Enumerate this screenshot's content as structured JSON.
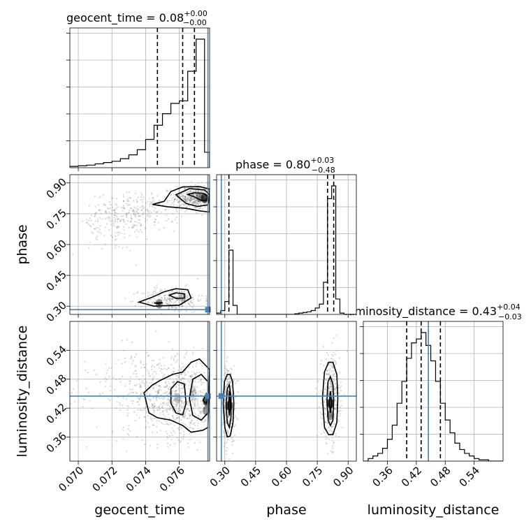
{
  "chart_data": {
    "type": "corner",
    "parameters": [
      "geocent_time",
      "phase",
      "luminosity_distance"
    ],
    "titles": [
      {
        "param": "geocent_time",
        "label": "geocent_time = 0.08",
        "plus": "+0.00",
        "minus": "−0.00"
      },
      {
        "param": "phase",
        "label": "phase = 0.80",
        "plus": "+0.03",
        "minus": "−0.48"
      },
      {
        "param": "luminosity_distance",
        "label": "luminosity_distance = 0.43",
        "plus": "+0.04",
        "minus": "−0.03"
      }
    ],
    "axes": {
      "geocent_time": {
        "range": [
          0.0695,
          0.0778
        ],
        "ticks": [
          0.07,
          0.072,
          0.074,
          0.076
        ],
        "tick_labels": [
          "0.070",
          "0.072",
          "0.074",
          "0.076"
        ]
      },
      "phase": {
        "range": [
          0.26,
          0.94
        ],
        "ticks": [
          0.3,
          0.45,
          0.6,
          0.75,
          0.9
        ],
        "tick_labels": [
          "0.30",
          "0.45",
          "0.60",
          "0.75",
          "0.90"
        ]
      },
      "luminosity_distance": {
        "range": [
          0.31,
          0.6
        ],
        "ticks": [
          0.36,
          0.42,
          0.48,
          0.54
        ],
        "tick_labels": [
          "0.36",
          "0.42",
          "0.48",
          "0.54"
        ]
      }
    },
    "truths": {
      "geocent_time": 0.0777,
      "phase": 0.283,
      "luminosity_distance": 0.445
    },
    "quantiles": {
      "geocent_time": [
        0.0747,
        0.0762,
        0.0769
      ],
      "phase": [
        0.32,
        0.8,
        0.83
      ],
      "luminosity_distance": [
        0.4,
        0.43,
        0.47
      ]
    },
    "histograms": {
      "geocent_time": {
        "edges": [
          0.0695,
          0.07,
          0.0705,
          0.071,
          0.0715,
          0.072,
          0.0725,
          0.073,
          0.0735,
          0.074,
          0.0745,
          0.075,
          0.0755,
          0.076,
          0.0765,
          0.077,
          0.0775,
          0.0778
        ],
        "counts": [
          0.01,
          0.015,
          0.02,
          0.03,
          0.04,
          0.05,
          0.07,
          0.1,
          0.14,
          0.22,
          0.33,
          0.42,
          0.5,
          0.52,
          0.75,
          1.0,
          0.12
        ]
      },
      "phase": {
        "edges": [
          0.26,
          0.28,
          0.3,
          0.32,
          0.34,
          0.36,
          0.38,
          0.4,
          0.42,
          0.44,
          0.46,
          0.48,
          0.5,
          0.52,
          0.54,
          0.56,
          0.58,
          0.6,
          0.62,
          0.64,
          0.66,
          0.68,
          0.7,
          0.72,
          0.74,
          0.76,
          0.78,
          0.8,
          0.82,
          0.84,
          0.86,
          0.88,
          0.9,
          0.92,
          0.94
        ],
        "counts": [
          0.01,
          0.03,
          0.1,
          0.5,
          0.07,
          0.0,
          0.0,
          0.0,
          0.0,
          0.0,
          0.0,
          0.0,
          0.0,
          0.0,
          0.0,
          0.0,
          0.0,
          0.0,
          0.0,
          0.005,
          0.01,
          0.015,
          0.02,
          0.03,
          0.05,
          0.08,
          0.25,
          0.9,
          1.0,
          0.12,
          0.01,
          0.0,
          0.0,
          0.0
        ]
      },
      "luminosity_distance": {
        "edges": [
          0.31,
          0.32,
          0.33,
          0.34,
          0.35,
          0.36,
          0.37,
          0.38,
          0.39,
          0.4,
          0.41,
          0.42,
          0.43,
          0.44,
          0.45,
          0.46,
          0.47,
          0.48,
          0.49,
          0.5,
          0.51,
          0.52,
          0.53,
          0.54,
          0.55,
          0.56,
          0.57,
          0.58,
          0.59,
          0.6
        ],
        "counts": [
          0.0,
          0.02,
          0.04,
          0.06,
          0.1,
          0.17,
          0.28,
          0.45,
          0.62,
          0.8,
          0.92,
          0.95,
          1.0,
          0.9,
          0.78,
          0.62,
          0.45,
          0.32,
          0.22,
          0.14,
          0.09,
          0.06,
          0.04,
          0.02,
          0.01,
          0.01,
          0.0,
          0.0,
          0.0
        ]
      }
    },
    "contours": {
      "phase_vs_geocent_time": [
        [
          [
            0.0765,
            0.844
          ],
          [
            0.0769,
            0.832
          ],
          [
            0.0773,
            0.815
          ],
          [
            0.0776,
            0.815
          ],
          [
            0.0777,
            0.835
          ],
          [
            0.0774,
            0.85
          ],
          [
            0.0769,
            0.852
          ]
        ],
        [
          [
            0.0758,
            0.842
          ],
          [
            0.0764,
            0.8
          ],
          [
            0.0771,
            0.785
          ],
          [
            0.0777,
            0.793
          ],
          [
            0.0778,
            0.842
          ],
          [
            0.0775,
            0.866
          ],
          [
            0.0766,
            0.872
          ]
        ],
        [
          [
            0.0744,
            0.795
          ],
          [
            0.0753,
            0.784
          ],
          [
            0.0764,
            0.776
          ],
          [
            0.0772,
            0.764
          ],
          [
            0.0778,
            0.758
          ],
          [
            0.0778,
            0.87
          ],
          [
            0.0772,
            0.882
          ],
          [
            0.0762,
            0.88
          ],
          [
            0.0755,
            0.858
          ],
          [
            0.0751,
            0.81
          ]
        ],
        [
          [
            0.0745,
            0.316
          ],
          [
            0.0748,
            0.31
          ],
          [
            0.075,
            0.318
          ]
        ],
        [
          [
            0.0754,
            0.354
          ],
          [
            0.0758,
            0.338
          ],
          [
            0.0763,
            0.34
          ],
          [
            0.0763,
            0.36
          ],
          [
            0.0758,
            0.365
          ]
        ],
        [
          [
            0.0736,
            0.32
          ],
          [
            0.0745,
            0.3
          ],
          [
            0.076,
            0.305
          ],
          [
            0.0767,
            0.34
          ],
          [
            0.0765,
            0.38
          ],
          [
            0.0758,
            0.385
          ],
          [
            0.0751,
            0.37
          ],
          [
            0.0744,
            0.344
          ]
        ]
      ],
      "luminosity_distance_vs_geocent_time": [
        [
          [
            0.0774,
            0.436
          ],
          [
            0.0776,
            0.43
          ],
          [
            0.0777,
            0.44
          ],
          [
            0.0776,
            0.45
          ]
        ],
        [
          [
            0.0766,
            0.44
          ],
          [
            0.0768,
            0.405
          ],
          [
            0.0773,
            0.395
          ],
          [
            0.0777,
            0.41
          ],
          [
            0.0777,
            0.475
          ],
          [
            0.0773,
            0.49
          ],
          [
            0.0768,
            0.48
          ]
        ],
        [
          [
            0.0755,
            0.43
          ],
          [
            0.0758,
            0.41
          ],
          [
            0.0762,
            0.406
          ],
          [
            0.0764,
            0.43
          ],
          [
            0.0763,
            0.47
          ],
          [
            0.0759,
            0.475
          ],
          [
            0.0755,
            0.46
          ]
        ],
        [
          [
            0.0739,
            0.452
          ],
          [
            0.0742,
            0.41
          ],
          [
            0.0747,
            0.4
          ],
          [
            0.0755,
            0.395
          ],
          [
            0.0762,
            0.384
          ],
          [
            0.0767,
            0.37
          ],
          [
            0.0774,
            0.374
          ],
          [
            0.0777,
            0.38
          ],
          [
            0.0778,
            0.5
          ],
          [
            0.0772,
            0.522
          ],
          [
            0.0767,
            0.515
          ],
          [
            0.0762,
            0.495
          ],
          [
            0.0756,
            0.49
          ],
          [
            0.0749,
            0.478
          ],
          [
            0.0744,
            0.468
          ]
        ]
      ],
      "luminosity_distance_vs_phase": [
        [
          [
            0.318,
            0.425
          ],
          [
            0.322,
            0.405
          ],
          [
            0.327,
            0.425
          ],
          [
            0.322,
            0.455
          ]
        ],
        [
          [
            0.306,
            0.425
          ],
          [
            0.312,
            0.39
          ],
          [
            0.322,
            0.38
          ],
          [
            0.33,
            0.4
          ],
          [
            0.33,
            0.445
          ],
          [
            0.322,
            0.468
          ],
          [
            0.312,
            0.46
          ]
        ],
        [
          [
            0.292,
            0.43
          ],
          [
            0.3,
            0.38
          ],
          [
            0.312,
            0.36
          ],
          [
            0.326,
            0.362
          ],
          [
            0.34,
            0.39
          ],
          [
            0.344,
            0.43
          ],
          [
            0.338,
            0.475
          ],
          [
            0.326,
            0.49
          ],
          [
            0.312,
            0.49
          ],
          [
            0.298,
            0.475
          ]
        ],
        [
          [
            0.808,
            0.43
          ],
          [
            0.814,
            0.41
          ],
          [
            0.82,
            0.43
          ],
          [
            0.814,
            0.455
          ]
        ],
        [
          [
            0.797,
            0.435
          ],
          [
            0.803,
            0.395
          ],
          [
            0.814,
            0.384
          ],
          [
            0.826,
            0.395
          ],
          [
            0.83,
            0.435
          ],
          [
            0.826,
            0.47
          ],
          [
            0.814,
            0.485
          ],
          [
            0.802,
            0.475
          ]
        ],
        [
          [
            0.775,
            0.44
          ],
          [
            0.785,
            0.38
          ],
          [
            0.805,
            0.365
          ],
          [
            0.826,
            0.365
          ],
          [
            0.845,
            0.39
          ],
          [
            0.85,
            0.44
          ],
          [
            0.845,
            0.49
          ],
          [
            0.826,
            0.515
          ],
          [
            0.805,
            0.515
          ],
          [
            0.785,
            0.495
          ]
        ]
      ]
    },
    "density_cores": {
      "phase_vs_geocent_time": [
        [
          0.0775,
          0.826,
          0.9
        ],
        [
          0.0772,
          0.83,
          0.5
        ],
        [
          0.0762,
          0.342,
          0.3
        ],
        [
          0.0748,
          0.312,
          0.5
        ]
      ],
      "luminosity_distance_vs_geocent_time": [
        [
          0.0776,
          0.435,
          0.85
        ],
        [
          0.0776,
          0.415,
          0.5
        ],
        [
          0.0759,
          0.44,
          0.3
        ],
        [
          0.0768,
          0.455,
          0.2
        ]
      ],
      "luminosity_distance_vs_phase": [
        [
          0.322,
          0.425,
          0.85
        ],
        [
          0.814,
          0.43,
          0.9
        ],
        [
          0.814,
          0.405,
          0.5
        ]
      ]
    },
    "grid": true
  },
  "axis_labels": {
    "x": [
      "geocent_time",
      "phase",
      "luminosity_distance"
    ],
    "y": [
      "phase",
      "luminosity_distance"
    ]
  }
}
